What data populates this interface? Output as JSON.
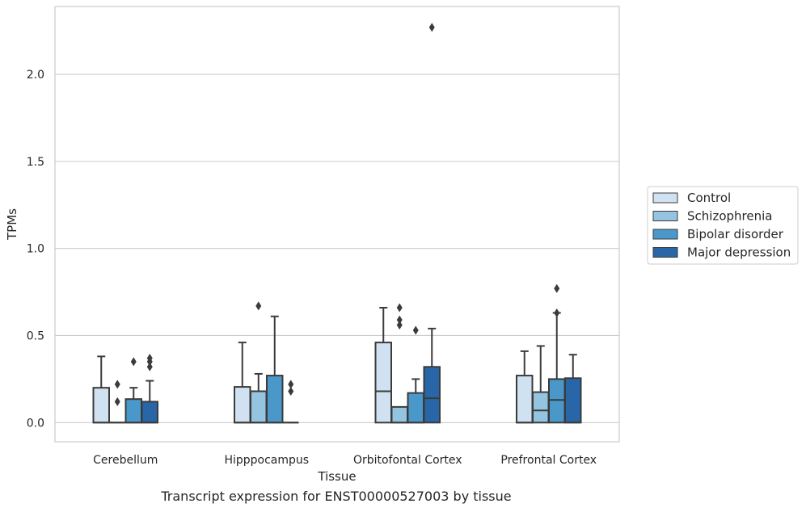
{
  "caption": "Transcript expression for ENST00000527003 by tissue",
  "chart_data": {
    "type": "box",
    "title": "",
    "xlabel": "Tissue",
    "ylabel": "TPMs",
    "ylim": [
      -0.11,
      2.39
    ],
    "yticks": [
      0.0,
      0.5,
      1.0,
      1.5,
      2.0
    ],
    "ytick_labels": [
      "0.0",
      "0.5",
      "1.0",
      "1.5",
      "2.0"
    ],
    "grid": "horizontal",
    "legend_placement": "right-center",
    "categories": [
      "Cerebellum",
      "Hipppocampus",
      "Orbitofontal Cortex",
      "Prefrontal Cortex"
    ],
    "series": [
      {
        "name": "Control",
        "color": "#d0e1f2",
        "boxes": [
          {
            "q1": 0.0,
            "median": 0.0,
            "q3": 0.2,
            "whisker_low": 0.0,
            "whisker_high": 0.38,
            "outliers": []
          },
          {
            "q1": 0.0,
            "median": 0.0,
            "q3": 0.205,
            "whisker_low": 0.0,
            "whisker_high": 0.46,
            "outliers": []
          },
          {
            "q1": 0.0,
            "median": 0.18,
            "q3": 0.46,
            "whisker_low": 0.0,
            "whisker_high": 0.66,
            "outliers": []
          },
          {
            "q1": 0.0,
            "median": 0.0,
            "q3": 0.27,
            "whisker_low": 0.0,
            "whisker_high": 0.41,
            "outliers": []
          }
        ]
      },
      {
        "name": "Schizophrenia",
        "color": "#94c4df",
        "boxes": [
          {
            "q1": 0.0,
            "median": 0.0,
            "q3": 0.0,
            "whisker_low": 0.0,
            "whisker_high": 0.0,
            "outliers": [
              0.12,
              0.22
            ]
          },
          {
            "q1": 0.0,
            "median": 0.0,
            "q3": 0.18,
            "whisker_low": 0.0,
            "whisker_high": 0.28,
            "outliers": [
              0.67
            ]
          },
          {
            "q1": 0.0,
            "median": 0.0,
            "q3": 0.09,
            "whisker_low": 0.0,
            "whisker_high": 0.09,
            "outliers": [
              0.56,
              0.59,
              0.66
            ]
          },
          {
            "q1": 0.0,
            "median": 0.07,
            "q3": 0.175,
            "whisker_low": 0.0,
            "whisker_high": 0.44,
            "outliers": []
          }
        ]
      },
      {
        "name": "Bipolar disorder",
        "color": "#4a98c9",
        "boxes": [
          {
            "q1": 0.0,
            "median": 0.0,
            "q3": 0.135,
            "whisker_low": 0.0,
            "whisker_high": 0.2,
            "outliers": [
              0.35
            ]
          },
          {
            "q1": 0.0,
            "median": 0.0,
            "q3": 0.27,
            "whisker_low": 0.0,
            "whisker_high": 0.61,
            "outliers": []
          },
          {
            "q1": 0.0,
            "median": 0.0,
            "q3": 0.17,
            "whisker_low": 0.0,
            "whisker_high": 0.25,
            "outliers": [
              0.53
            ]
          },
          {
            "q1": 0.0,
            "median": 0.13,
            "q3": 0.25,
            "whisker_low": 0.0,
            "whisker_high": 0.63,
            "outliers": [
              0.63,
              0.77
            ]
          }
        ]
      },
      {
        "name": "Major depression",
        "color": "#2866a8",
        "boxes": [
          {
            "q1": 0.0,
            "median": 0.0,
            "q3": 0.12,
            "whisker_low": 0.0,
            "whisker_high": 0.24,
            "outliers": [
              0.32,
              0.35,
              0.37
            ]
          },
          {
            "q1": 0.0,
            "median": 0.0,
            "q3": 0.0,
            "whisker_low": 0.0,
            "whisker_high": 0.0,
            "outliers": [
              0.18,
              0.22
            ]
          },
          {
            "q1": 0.0,
            "median": 0.14,
            "q3": 0.32,
            "whisker_low": 0.0,
            "whisker_high": 0.54,
            "outliers": [
              2.27
            ]
          },
          {
            "q1": 0.0,
            "median": 0.0,
            "q3": 0.255,
            "whisker_low": 0.0,
            "whisker_high": 0.39,
            "outliers": []
          }
        ]
      }
    ]
  }
}
